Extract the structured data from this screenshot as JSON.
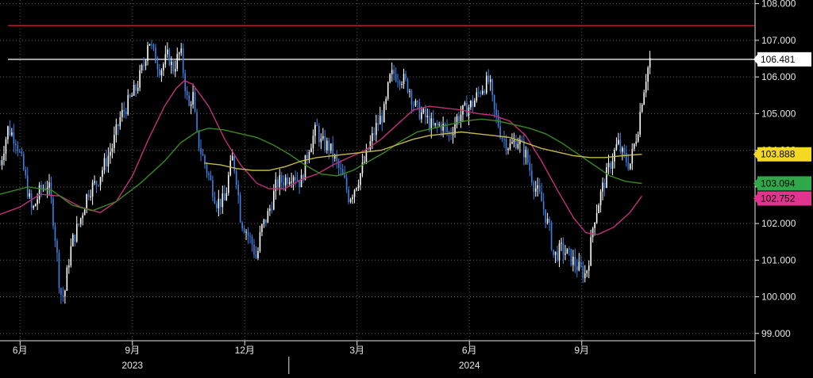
{
  "chart_data": {
    "type": "candlestick",
    "title": "",
    "xlabel": "",
    "ylabel": "",
    "ylim": [
      98.8,
      108.1
    ],
    "y_ticks": [
      "108.000",
      "107.000",
      "106.000",
      "105.000",
      "104.000",
      "103.000",
      "102.000",
      "101.000",
      "100.000",
      "99.000"
    ],
    "x_ticks": [
      {
        "label": "6月",
        "x": 20
      },
      {
        "label": "9月",
        "x": 48
      },
      {
        "label": "12月",
        "x": 76
      },
      {
        "label": "3月",
        "x": 104
      },
      {
        "label": "6月",
        "x": 132
      },
      {
        "label": "9月",
        "x": 160
      }
    ],
    "x_years": [
      {
        "label": "2023",
        "x": 48
      },
      {
        "label": "2024",
        "x": 132
      }
    ],
    "year_divider_x": 87,
    "x_range": [
      15,
      203
    ],
    "grid": true,
    "legend": "none",
    "price_keypoints": [
      [
        15,
        103.6
      ],
      [
        17,
        104.6
      ],
      [
        19,
        104.3
      ],
      [
        21,
        103.4
      ],
      [
        23,
        102.3
      ],
      [
        25,
        102.9
      ],
      [
        27,
        103.1
      ],
      [
        28,
        102.4
      ],
      [
        29,
        101.4
      ],
      [
        30,
        100.1
      ],
      [
        31,
        100.0
      ],
      [
        32,
        100.9
      ],
      [
        33,
        101.5
      ],
      [
        35,
        102.1
      ],
      [
        37,
        102.9
      ],
      [
        39,
        103.1
      ],
      [
        41,
        103.6
      ],
      [
        43,
        104.1
      ],
      [
        45,
        104.9
      ],
      [
        47,
        105.3
      ],
      [
        49,
        105.7
      ],
      [
        51,
        106.4
      ],
      [
        52,
        107.1
      ],
      [
        53,
        106.7
      ],
      [
        55,
        106.2
      ],
      [
        57,
        106.6
      ],
      [
        58,
        106.2
      ],
      [
        60,
        106.7
      ],
      [
        61,
        105.9
      ],
      [
        62,
        105.1
      ],
      [
        63,
        105.6
      ],
      [
        64,
        104.4
      ],
      [
        65,
        104.0
      ],
      [
        67,
        103.3
      ],
      [
        69,
        102.6
      ],
      [
        71,
        102.6
      ],
      [
        72,
        103.3
      ],
      [
        73,
        103.8
      ],
      [
        74,
        103.2
      ],
      [
        75,
        102.1
      ],
      [
        76,
        101.9
      ],
      [
        78,
        101.4
      ],
      [
        79,
        101.0
      ],
      [
        80,
        101.8
      ],
      [
        82,
        102.3
      ],
      [
        84,
        103.1
      ],
      [
        86,
        103.2
      ],
      [
        88,
        103.4
      ],
      [
        90,
        103.1
      ],
      [
        92,
        104.1
      ],
      [
        94,
        104.6
      ],
      [
        95,
        104.2
      ],
      [
        97,
        104.1
      ],
      [
        99,
        103.6
      ],
      [
        101,
        103.1
      ],
      [
        102,
        102.7
      ],
      [
        103,
        102.9
      ],
      [
        105,
        103.4
      ],
      [
        107,
        104.1
      ],
      [
        109,
        104.7
      ],
      [
        111,
        105.1
      ],
      [
        112,
        105.9
      ],
      [
        113,
        106.1
      ],
      [
        115,
        106.0
      ],
      [
        117,
        105.7
      ],
      [
        118,
        105.3
      ],
      [
        119,
        105.1
      ],
      [
        121,
        104.9
      ],
      [
        123,
        104.6
      ],
      [
        125,
        104.7
      ],
      [
        127,
        104.4
      ],
      [
        129,
        104.9
      ],
      [
        131,
        105.1
      ],
      [
        133,
        105.3
      ],
      [
        135,
        105.7
      ],
      [
        137,
        105.9
      ],
      [
        138,
        105.1
      ],
      [
        139,
        104.8
      ],
      [
        140,
        104.4
      ],
      [
        142,
        104.1
      ],
      [
        144,
        104.3
      ],
      [
        146,
        103.9
      ],
      [
        148,
        103.1
      ],
      [
        150,
        102.6
      ],
      [
        152,
        101.8
      ],
      [
        153,
        101.1
      ],
      [
        155,
        101.3
      ],
      [
        157,
        101.1
      ],
      [
        159,
        100.8
      ],
      [
        161,
        100.6
      ],
      [
        162,
        101.2
      ],
      [
        163,
        102.1
      ],
      [
        165,
        102.9
      ],
      [
        167,
        103.6
      ],
      [
        169,
        104.2
      ],
      [
        170,
        103.9
      ],
      [
        172,
        103.6
      ],
      [
        173,
        104.1
      ],
      [
        174,
        104.6
      ],
      [
        175,
        105.4
      ],
      [
        176,
        106.0
      ],
      [
        177,
        106.481
      ]
    ],
    "series": [
      {
        "key": "magenta",
        "color": "#c2307a",
        "points": [
          [
            15,
            102.25
          ],
          [
            20,
            102.45
          ],
          [
            25,
            102.8
          ],
          [
            30,
            102.75
          ],
          [
            35,
            102.45
          ],
          [
            40,
            102.3
          ],
          [
            44,
            102.6
          ],
          [
            48,
            103.3
          ],
          [
            52,
            104.3
          ],
          [
            56,
            105.2
          ],
          [
            59,
            105.7
          ],
          [
            61,
            105.9
          ],
          [
            63,
            105.8
          ],
          [
            67,
            105.2
          ],
          [
            71,
            104.3
          ],
          [
            75,
            103.6
          ],
          [
            79,
            103.1
          ],
          [
            82,
            102.95
          ],
          [
            86,
            102.95
          ],
          [
            90,
            103.2
          ],
          [
            94,
            103.35
          ],
          [
            98,
            103.6
          ],
          [
            102,
            103.8
          ],
          [
            106,
            104.0
          ],
          [
            110,
            104.3
          ],
          [
            114,
            104.7
          ],
          [
            118,
            105.1
          ],
          [
            122,
            105.2
          ],
          [
            126,
            105.15
          ],
          [
            130,
            105.1
          ],
          [
            134,
            105.0
          ],
          [
            138,
            104.95
          ],
          [
            142,
            104.8
          ],
          [
            146,
            104.4
          ],
          [
            150,
            103.7
          ],
          [
            154,
            102.9
          ],
          [
            158,
            102.15
          ],
          [
            161,
            101.75
          ],
          [
            164,
            101.7
          ],
          [
            168,
            101.9
          ],
          [
            172,
            102.3
          ],
          [
            175,
            102.752
          ]
        ]
      },
      {
        "key": "green",
        "color": "#3a8a1e",
        "points": [
          [
            15,
            102.8
          ],
          [
            22,
            103.0
          ],
          [
            28,
            102.9
          ],
          [
            33,
            102.5
          ],
          [
            38,
            102.35
          ],
          [
            44,
            102.6
          ],
          [
            50,
            103.1
          ],
          [
            56,
            103.7
          ],
          [
            60,
            104.2
          ],
          [
            64,
            104.5
          ],
          [
            67,
            104.6
          ],
          [
            71,
            104.55
          ],
          [
            75,
            104.45
          ],
          [
            79,
            104.35
          ],
          [
            83,
            104.15
          ],
          [
            87,
            103.9
          ],
          [
            91,
            103.6
          ],
          [
            95,
            103.35
          ],
          [
            99,
            103.3
          ],
          [
            103,
            103.45
          ],
          [
            107,
            103.7
          ],
          [
            111,
            103.95
          ],
          [
            115,
            104.25
          ],
          [
            119,
            104.5
          ],
          [
            123,
            104.6
          ],
          [
            127,
            104.7
          ],
          [
            131,
            104.8
          ],
          [
            135,
            104.85
          ],
          [
            139,
            104.8
          ],
          [
            143,
            104.7
          ],
          [
            147,
            104.6
          ],
          [
            151,
            104.45
          ],
          [
            155,
            104.2
          ],
          [
            159,
            103.9
          ],
          [
            163,
            103.6
          ],
          [
            167,
            103.3
          ],
          [
            171,
            103.15
          ],
          [
            175,
            103.094
          ]
        ]
      },
      {
        "key": "yellow",
        "color": "#c6b84a",
        "points": [
          [
            66,
            103.65
          ],
          [
            70,
            103.6
          ],
          [
            74,
            103.5
          ],
          [
            78,
            103.45
          ],
          [
            82,
            103.45
          ],
          [
            86,
            103.55
          ],
          [
            90,
            103.7
          ],
          [
            94,
            103.8
          ],
          [
            98,
            103.85
          ],
          [
            102,
            103.9
          ],
          [
            106,
            103.95
          ],
          [
            110,
            104.0
          ],
          [
            114,
            104.15
          ],
          [
            118,
            104.3
          ],
          [
            122,
            104.4
          ],
          [
            126,
            104.45
          ],
          [
            130,
            104.5
          ],
          [
            134,
            104.45
          ],
          [
            138,
            104.4
          ],
          [
            142,
            104.35
          ],
          [
            146,
            104.2
          ],
          [
            150,
            104.05
          ],
          [
            154,
            103.95
          ],
          [
            158,
            103.85
          ],
          [
            162,
            103.8
          ],
          [
            166,
            103.8
          ],
          [
            170,
            103.85
          ],
          [
            175,
            103.888
          ]
        ]
      }
    ],
    "reference_lines": [
      {
        "value": 107.4,
        "color": "#b0242a",
        "x_from": 17,
        "x_to": 203
      },
      {
        "value": 106.481,
        "color": "#d8d8d8",
        "x_from": 17,
        "x_to": 203
      }
    ],
    "last_value_tags": [
      {
        "label": "106.481",
        "value": 106.481,
        "bg": "#ffffff",
        "fg": "#000000"
      },
      {
        "label": "103.888",
        "value": 103.888,
        "bg": "#f4d923",
        "fg": "#000000"
      },
      {
        "label": "103.094",
        "value": 103.094,
        "bg": "#2fa84a",
        "fg": "#000000"
      },
      {
        "label": "102.752",
        "value": 102.752,
        "bg": "#e2338e",
        "fg": "#000000"
      }
    ],
    "colors": {
      "background": "#000000",
      "grid": "#5a5a5a",
      "axis_text": "#e6e6e6",
      "candle_up": "#ffffff",
      "candle_down": "#3f80e0"
    }
  }
}
